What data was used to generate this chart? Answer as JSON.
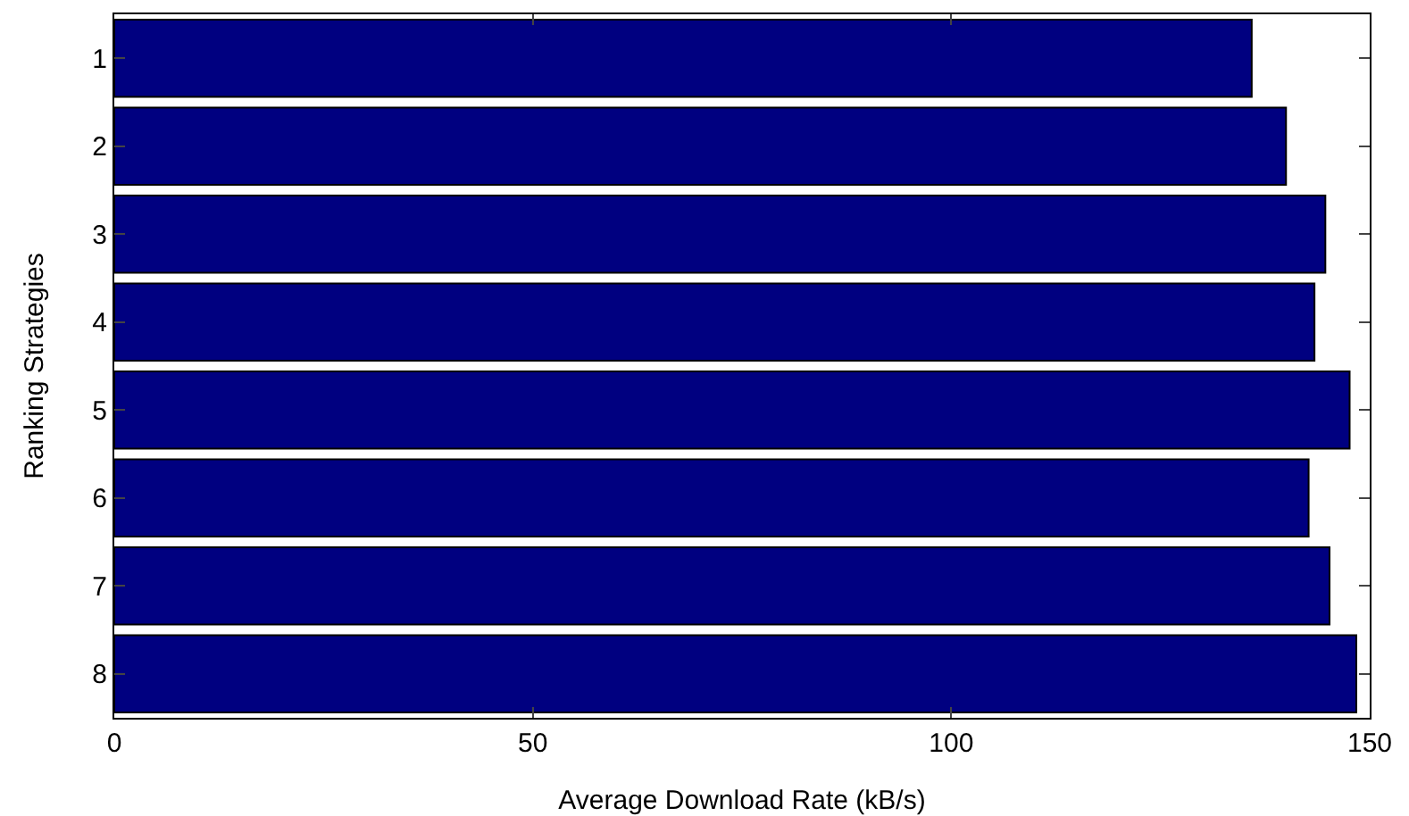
{
  "chart_data": {
    "type": "bar",
    "orientation": "horizontal",
    "xlabel": "Average Download Rate (kB/s)",
    "ylabel": "Ranking Strategies",
    "categories": [
      "1",
      "2",
      "3",
      "4",
      "5",
      "6",
      "7",
      "8"
    ],
    "values": [
      135.9,
      140,
      144.7,
      143.4,
      147.6,
      142.7,
      145.2,
      148.4
    ],
    "color": "#000080",
    "xlim": [
      0,
      150
    ],
    "xticks": [
      0,
      50,
      100,
      150
    ],
    "grid": false
  }
}
